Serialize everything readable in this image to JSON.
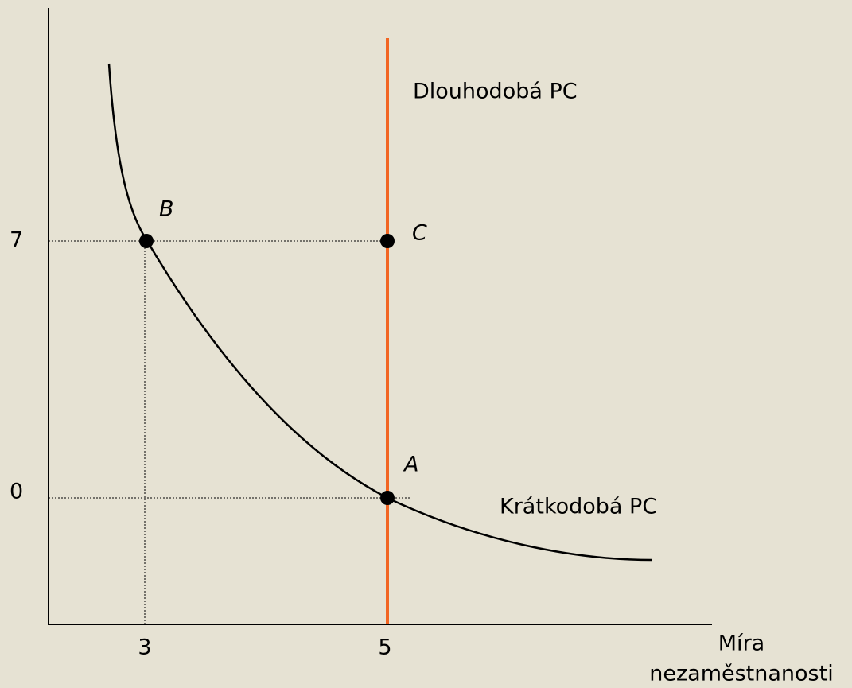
{
  "y_axis": {
    "ticks": [
      "7",
      "0"
    ]
  },
  "x_axis": {
    "ticks": [
      "3",
      "5"
    ],
    "label": [
      "Míra",
      "nezaměstnanosti"
    ]
  },
  "curves": {
    "long_run": "Dlouhodobá PC",
    "short_run": "Krátkodobá PC"
  },
  "points": {
    "b": "B",
    "c": "C",
    "a": "A"
  }
}
